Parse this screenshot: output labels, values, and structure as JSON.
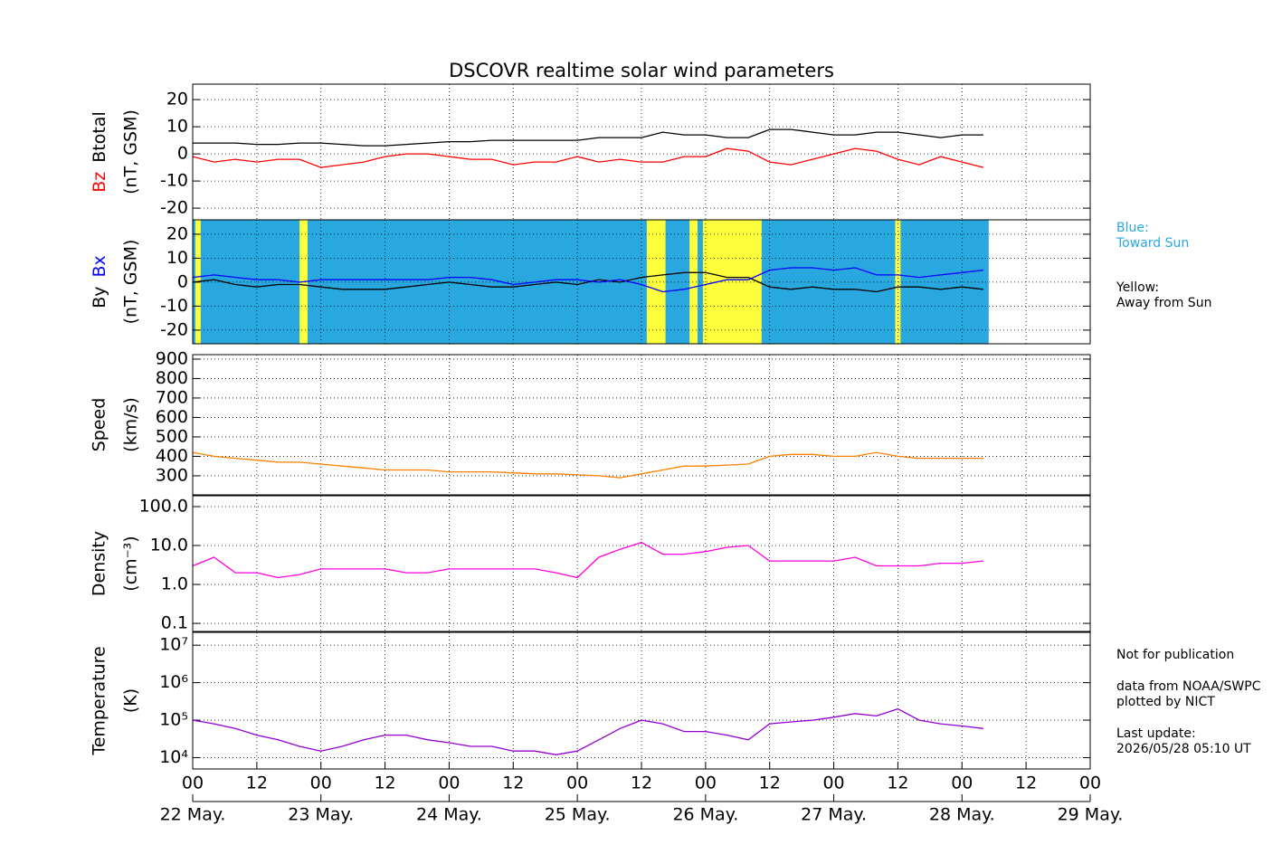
{
  "chart_data": [
    {
      "type": "line",
      "title": "DSCOVR realtime solar wind parameters",
      "ylim": [
        -24.3,
        25.7
      ],
      "yticks": [
        -20,
        -10,
        0,
        10,
        20
      ],
      "grid": true,
      "ylabel_units": "(nT, GSM)",
      "x": [
        0,
        4,
        8,
        12,
        16,
        20,
        24,
        28,
        32,
        36,
        40,
        44,
        48,
        52,
        56,
        60,
        64,
        68,
        72,
        76,
        80,
        84,
        88,
        92,
        96,
        100,
        104,
        108,
        112,
        116,
        120,
        124,
        128,
        132,
        136,
        140,
        144,
        148
      ],
      "series": [
        {
          "name": "Bz",
          "color": "#ff0000",
          "values": [
            -1,
            -3,
            -2,
            -3,
            -2,
            -2,
            -5,
            -4,
            -3,
            -1,
            0,
            0,
            -1,
            -2,
            -2,
            -4,
            -3,
            -3,
            -1,
            -3,
            -2,
            -3,
            -3,
            -1,
            -1,
            2,
            1,
            -3,
            -4,
            -2,
            0,
            2,
            1,
            -2,
            -4,
            -1,
            -3,
            -5
          ]
        },
        {
          "name": "Btotal",
          "color": "#000000",
          "values": [
            4,
            4,
            4,
            3.5,
            3.5,
            4,
            4,
            3.5,
            3,
            3,
            3.5,
            4,
            4.5,
            4.5,
            5,
            5,
            5,
            5,
            5,
            6,
            6,
            6,
            8,
            7,
            7,
            6,
            6,
            9,
            9,
            8,
            7,
            7,
            8,
            8,
            7,
            6,
            7,
            7
          ]
        }
      ]
    },
    {
      "type": "line",
      "ylim": [
        -25.7,
        26
      ],
      "yticks": [
        -20,
        -10,
        0,
        10,
        20
      ],
      "grid": true,
      "ylabel_units": "(nT, GSM)",
      "toward_color": "#29a8e0",
      "away_color": "#ffff3c",
      "toward_span": [
        0,
        149
      ],
      "away_spans": [
        [
          0.5,
          1.5
        ],
        [
          20,
          21.5
        ],
        [
          85,
          88.5
        ],
        [
          93,
          94.5
        ],
        [
          95.5,
          106.5
        ],
        [
          131.5,
          132.5
        ]
      ],
      "toward_label": [
        "Blue:",
        "Toward Sun"
      ],
      "away_label": [
        "Yellow:",
        "Away from Sun"
      ],
      "x": [
        0,
        4,
        8,
        12,
        16,
        20,
        24,
        28,
        32,
        36,
        40,
        44,
        48,
        52,
        56,
        60,
        64,
        68,
        72,
        76,
        80,
        84,
        88,
        92,
        96,
        100,
        104,
        108,
        112,
        116,
        120,
        124,
        128,
        132,
        136,
        140,
        144,
        148
      ],
      "series": [
        {
          "name": "By",
          "color": "#000000",
          "values": [
            0,
            1,
            -1,
            -2,
            -1,
            -1,
            -2,
            -3,
            -3,
            -3,
            -2,
            -1,
            0,
            -1,
            -2,
            -2,
            -1,
            0,
            -1,
            1,
            0,
            2,
            3,
            4,
            4,
            2,
            2,
            -2,
            -3,
            -2,
            -3,
            -3,
            -4,
            -2,
            -2,
            -3,
            -2,
            -3
          ]
        },
        {
          "name": "Bx",
          "color": "#0000ff",
          "values": [
            2,
            3,
            2,
            1,
            1,
            0,
            1,
            1,
            1,
            1,
            1,
            1,
            2,
            2,
            1,
            -1,
            0,
            1,
            1,
            0,
            1,
            -1,
            -4,
            -3,
            -1,
            1,
            1,
            5,
            6,
            6,
            5,
            6,
            3,
            3,
            2,
            3,
            4,
            5
          ]
        }
      ]
    },
    {
      "type": "line",
      "ylim": [
        202,
        923
      ],
      "yticks": [
        300,
        400,
        500,
        600,
        700,
        800,
        900
      ],
      "grid": true,
      "ylabel": "Speed",
      "ylabel_units": "(km/s)",
      "x": [
        0,
        4,
        8,
        12,
        16,
        20,
        24,
        28,
        32,
        36,
        40,
        44,
        48,
        52,
        56,
        60,
        64,
        68,
        72,
        76,
        80,
        84,
        88,
        92,
        96,
        100,
        104,
        108,
        112,
        116,
        120,
        124,
        128,
        132,
        136,
        140,
        144,
        148
      ],
      "series": [
        {
          "name": "Speed",
          "color": "#ff8000",
          "values": [
            420,
            400,
            390,
            380,
            370,
            370,
            360,
            350,
            340,
            330,
            330,
            330,
            320,
            320,
            320,
            315,
            310,
            310,
            305,
            300,
            290,
            310,
            330,
            350,
            350,
            355,
            360,
            400,
            410,
            410,
            400,
            400,
            420,
            400,
            390,
            390,
            390,
            390
          ]
        }
      ]
    },
    {
      "type": "line",
      "log": true,
      "ylim": [
        0.062,
        190
      ],
      "grid": true,
      "yticks": [
        {
          "value": 0.1,
          "label": "0.1"
        },
        {
          "value": 1,
          "label": "1.0"
        },
        {
          "value": 10,
          "label": "10.0"
        },
        {
          "value": 100,
          "label": "100.0"
        }
      ],
      "ylabel": "Density",
      "ylabel_units": "(cm⁻³)",
      "x": [
        0,
        4,
        8,
        12,
        16,
        20,
        24,
        28,
        32,
        36,
        40,
        44,
        48,
        52,
        56,
        60,
        64,
        68,
        72,
        76,
        80,
        84,
        88,
        92,
        96,
        100,
        104,
        108,
        112,
        116,
        120,
        124,
        128,
        132,
        136,
        140,
        144,
        148
      ],
      "series": [
        {
          "name": "Density",
          "color": "#ff00dd",
          "values": [
            3,
            5,
            2,
            2,
            1.5,
            1.8,
            2.5,
            2.5,
            2.5,
            2.5,
            2,
            2,
            2.5,
            2.5,
            2.5,
            2.5,
            2.5,
            2,
            1.5,
            5,
            8,
            12,
            6,
            6,
            7,
            9,
            10,
            4,
            4,
            4,
            4,
            5,
            3,
            3,
            3,
            3.5,
            3.5,
            4
          ]
        }
      ]
    },
    {
      "type": "line",
      "log": true,
      "ylim": [
        5000,
        22000000
      ],
      "grid": true,
      "yticks": [
        {
          "value": 10000,
          "label": "10⁴"
        },
        {
          "value": 100000,
          "label": "10⁵"
        },
        {
          "value": 1000000,
          "label": "10⁶"
        },
        {
          "value": 10000000,
          "label": "10⁷"
        }
      ],
      "ylabel": "Temperature",
      "ylabel_units": "(K)",
      "notes": [
        "Not for publication",
        "data from NOAA/SWPC",
        "plotted by NICT",
        "Last update:",
        "2026/05/28 05:10 UT"
      ],
      "xlim": [
        0,
        168
      ],
      "xticks": [
        {
          "value": 0,
          "label": "00"
        },
        {
          "value": 12,
          "label": "12"
        },
        {
          "value": 24,
          "label": "00"
        },
        {
          "value": 36,
          "label": "12"
        },
        {
          "value": 48,
          "label": "00"
        },
        {
          "value": 60,
          "label": "12"
        },
        {
          "value": 72,
          "label": "00"
        },
        {
          "value": 84,
          "label": "12"
        },
        {
          "value": 96,
          "label": "00"
        },
        {
          "value": 108,
          "label": "12"
        },
        {
          "value": 120,
          "label": "00"
        },
        {
          "value": 132,
          "label": "12"
        },
        {
          "value": 144,
          "label": "00"
        },
        {
          "value": 156,
          "label": "12"
        },
        {
          "value": 168,
          "label": "00"
        }
      ],
      "date_labels": [
        {
          "value": 0,
          "label": "22 May."
        },
        {
          "value": 24,
          "label": "23 May."
        },
        {
          "value": 48,
          "label": "24 May."
        },
        {
          "value": 72,
          "label": "25 May."
        },
        {
          "value": 96,
          "label": "26 May."
        },
        {
          "value": 120,
          "label": "27 May."
        },
        {
          "value": 144,
          "label": "28 May."
        },
        {
          "value": 168,
          "label": "29 May."
        }
      ],
      "x": [
        0,
        4,
        8,
        12,
        16,
        20,
        24,
        28,
        32,
        36,
        40,
        44,
        48,
        52,
        56,
        60,
        64,
        68,
        72,
        76,
        80,
        84,
        88,
        92,
        96,
        100,
        104,
        108,
        112,
        116,
        120,
        124,
        128,
        132,
        136,
        140,
        144,
        148
      ],
      "series": [
        {
          "name": "Temperature",
          "color": "#9400d3",
          "values": [
            100000,
            80000,
            60000,
            40000,
            30000,
            20000,
            15000,
            20000,
            30000,
            40000,
            40000,
            30000,
            25000,
            20000,
            20000,
            15000,
            15000,
            12000,
            15000,
            30000,
            60000,
            100000,
            80000,
            50000,
            50000,
            40000,
            30000,
            80000,
            90000,
            100000,
            120000,
            150000,
            130000,
            200000,
            100000,
            80000,
            70000,
            60000
          ]
        }
      ]
    }
  ]
}
